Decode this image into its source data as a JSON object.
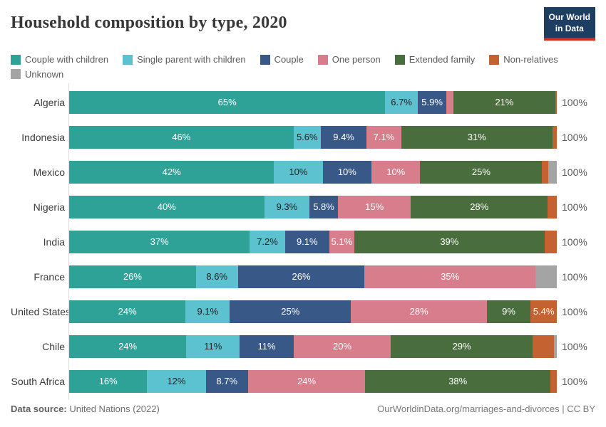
{
  "header": {
    "title": "Household composition by type, 2020",
    "logo": {
      "line1": "Our World",
      "line2": "in Data",
      "bg_color": "#1d3d63",
      "accent_color": "#d42b21"
    }
  },
  "chart_data": {
    "type": "bar",
    "stacked": true,
    "orientation": "horizontal",
    "unit": "%",
    "xlim": [
      0,
      100
    ],
    "grid": false,
    "legend_position": "top",
    "row_total_label": "100%",
    "categories": [
      "Algeria",
      "Indonesia",
      "Mexico",
      "Nigeria",
      "India",
      "France",
      "United States",
      "Chile",
      "South Africa"
    ],
    "series": [
      {
        "name": "Couple with children",
        "color": "#2fa298",
        "label_color": "#ffffff",
        "values": [
          65,
          46,
          42,
          40,
          37,
          26,
          24,
          24,
          16
        ],
        "labels": [
          "65%",
          "46%",
          "42%",
          "40%",
          "37%",
          "26%",
          "24%",
          "24%",
          "16%"
        ]
      },
      {
        "name": "Single parent with children",
        "color": "#5cc2cf",
        "label_color": "#222222",
        "values": [
          6.7,
          5.6,
          10,
          9.3,
          7.2,
          8.6,
          9.1,
          11,
          12
        ],
        "labels": [
          "6.7%",
          "5.6%",
          "10%",
          "9.3%",
          "7.2%",
          "8.6%",
          "9.1%",
          "11%",
          "12%"
        ]
      },
      {
        "name": "Couple",
        "color": "#385888",
        "label_color": "#ffffff",
        "values": [
          5.9,
          9.4,
          10,
          5.8,
          9.1,
          26,
          25,
          11,
          8.7
        ],
        "labels": [
          "5.9%",
          "9.4%",
          "10%",
          "5.8%",
          "9.1%",
          "26%",
          "25%",
          "11%",
          "8.7%"
        ]
      },
      {
        "name": "One person",
        "color": "#d87d8c",
        "label_color": "#ffffff",
        "values": [
          1.4,
          7.1,
          10,
          15,
          5.1,
          35,
          28,
          20,
          24
        ],
        "labels": [
          "",
          "7.1%",
          "10%",
          "15%",
          "5.1%",
          "35%",
          "28%",
          "20%",
          "24%"
        ]
      },
      {
        "name": "Extended family",
        "color": "#4a6d3e",
        "label_color": "#ffffff",
        "values": [
          21,
          31,
          25,
          28,
          39,
          0,
          9,
          29,
          38
        ],
        "labels": [
          "21%",
          "31%",
          "25%",
          "28%",
          "39%",
          "",
          "9%",
          "29%",
          "38%"
        ]
      },
      {
        "name": "Non-relatives",
        "color": "#c46231",
        "label_color": "#ffffff",
        "values": [
          0.3,
          0.9,
          1.2,
          1.9,
          2.5,
          0,
          5.4,
          4.4,
          1.3
        ],
        "labels": [
          "",
          "",
          "",
          "",
          "",
          "",
          "5.4%",
          "",
          ""
        ]
      },
      {
        "name": "Unknown",
        "color": "#a4a4a4",
        "label_color": "#ffffff",
        "values": [
          0,
          0,
          1.8,
          0,
          0,
          4.4,
          0,
          0.6,
          0
        ],
        "labels": [
          "",
          "",
          "",
          "",
          "",
          "",
          "",
          "",
          ""
        ]
      }
    ]
  },
  "footer": {
    "source_label": "Data source:",
    "source_value": " United Nations (2022)",
    "credit": "OurWorldinData.org/marriages-and-divorces | CC BY"
  }
}
